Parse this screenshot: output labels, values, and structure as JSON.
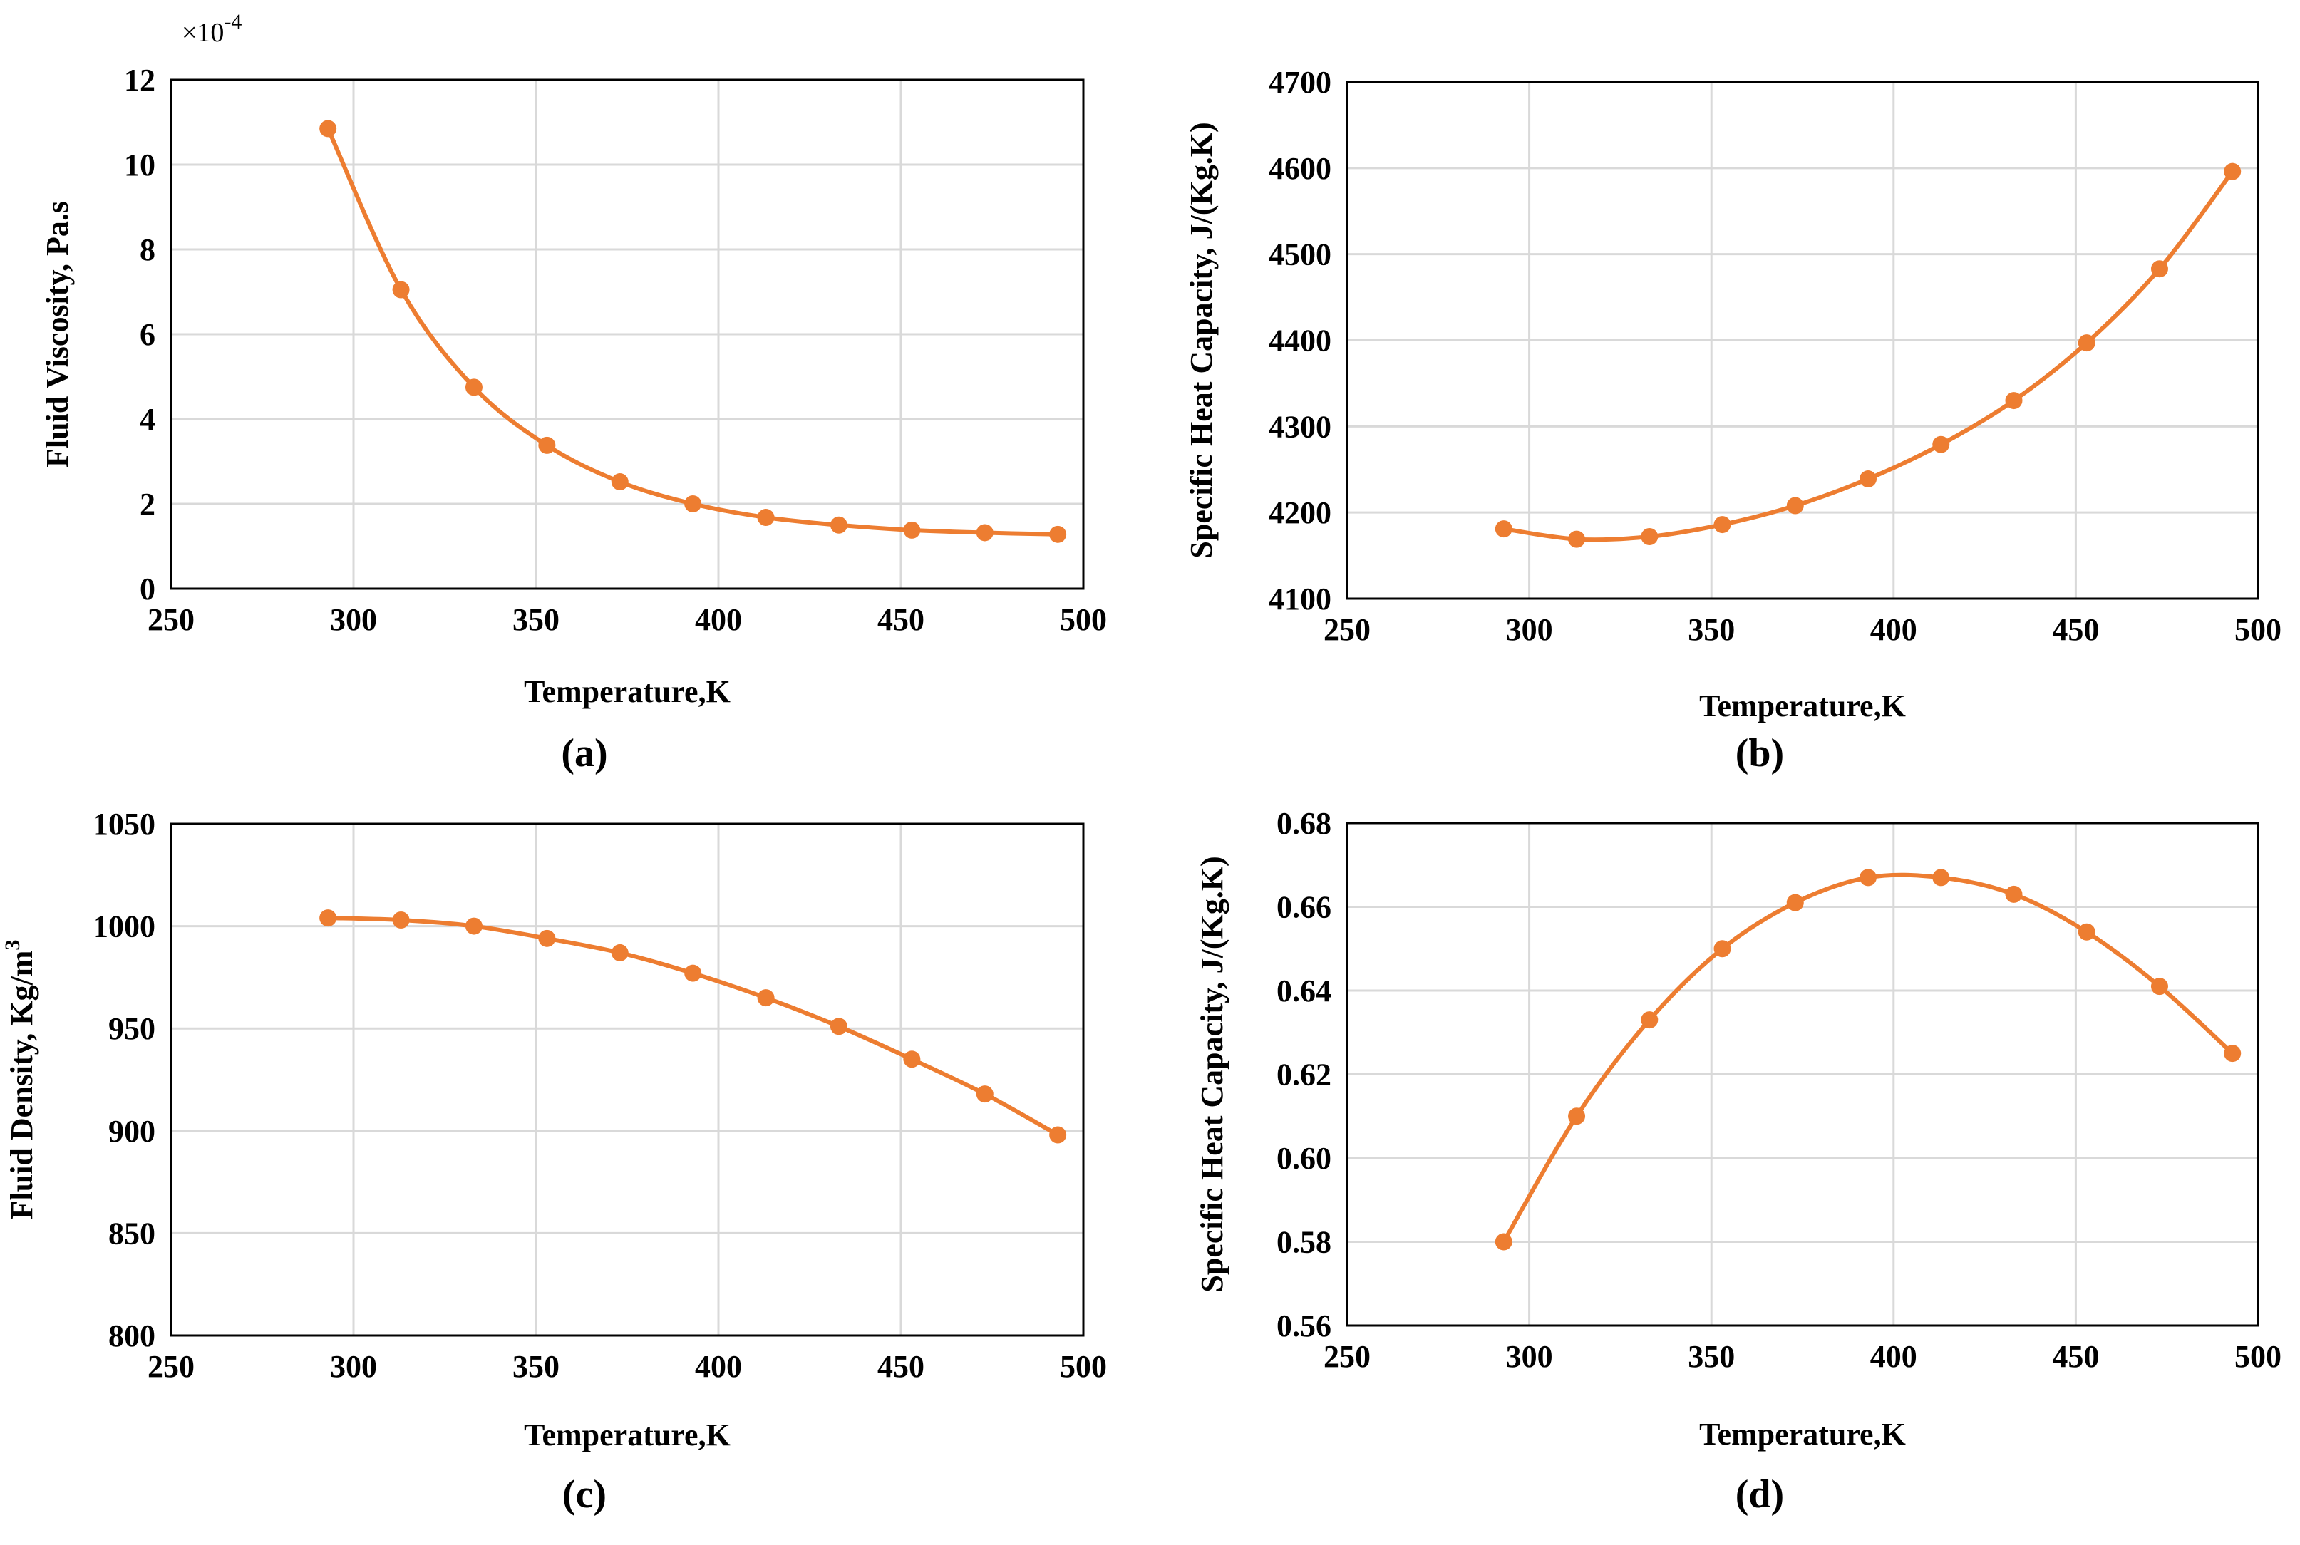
{
  "colors": {
    "series": "#ED7D31",
    "grid": "#d9d9d9",
    "axis": "#000000"
  },
  "chart_data": [
    {
      "id": "a",
      "type": "line",
      "panel_label": "(a)",
      "xlabel": "Temperature,K",
      "ylabel": "Fluid Viscosity, Pa.s",
      "y_multiplier": "×10-4",
      "xlim": [
        250,
        500
      ],
      "ylim": [
        0,
        12
      ],
      "xticks": [
        250,
        300,
        350,
        400,
        450,
        500
      ],
      "yticks": [
        0,
        2,
        4,
        6,
        8,
        10,
        12
      ],
      "ytick_labels": [
        "0",
        "2",
        "4",
        "6",
        "8",
        "10",
        "12"
      ],
      "grid": true,
      "series": [
        {
          "name": "Fluid Viscosity",
          "x": [
            293,
            313,
            333,
            353,
            373,
            393,
            413,
            433,
            453,
            473,
            493
          ],
          "y": [
            10.85,
            7.05,
            4.75,
            3.38,
            2.52,
            2.0,
            1.68,
            1.5,
            1.38,
            1.32,
            1.28
          ]
        }
      ]
    },
    {
      "id": "b",
      "type": "line",
      "panel_label": "(b)",
      "xlabel": "Temperature,K",
      "ylabel": "Specific Heat Capacity, J/(Kg.K)",
      "xlim": [
        250,
        500
      ],
      "ylim": [
        4100,
        4700
      ],
      "xticks": [
        250,
        300,
        350,
        400,
        450,
        500
      ],
      "yticks": [
        4100,
        4200,
        4300,
        4400,
        4500,
        4600,
        4700
      ],
      "ytick_labels": [
        "4100",
        "4200",
        "4300",
        "4400",
        "4500",
        "4600",
        "4700"
      ],
      "grid": true,
      "series": [
        {
          "name": "Specific Heat Capacity",
          "x": [
            293,
            313,
            333,
            353,
            373,
            393,
            413,
            433,
            453,
            473,
            493
          ],
          "y": [
            4181,
            4169,
            4172,
            4186,
            4208,
            4239,
            4279,
            4330,
            4397,
            4483,
            4596
          ]
        }
      ]
    },
    {
      "id": "c",
      "type": "line",
      "panel_label": "(c)",
      "xlabel": "Temperature,K",
      "ylabel": "Fluid Density, Kg/m",
      "ylabel_superscript": "3",
      "xlim": [
        250,
        500
      ],
      "ylim": [
        800,
        1050
      ],
      "xticks": [
        250,
        300,
        350,
        400,
        450,
        500
      ],
      "yticks": [
        800,
        850,
        900,
        950,
        1000,
        1050
      ],
      "ytick_labels": [
        "800",
        "850",
        "900",
        "950",
        "1000",
        "1050"
      ],
      "grid": true,
      "series": [
        {
          "name": "Fluid Density",
          "x": [
            293,
            313,
            333,
            353,
            373,
            393,
            413,
            433,
            453,
            473,
            493
          ],
          "y": [
            1004,
            1003,
            1000,
            994,
            987,
            977,
            965,
            951,
            935,
            918,
            898
          ]
        }
      ]
    },
    {
      "id": "d",
      "type": "line",
      "panel_label": "(d)",
      "xlabel": "Temperature,K",
      "ylabel": "Specific Heat Capacity, J/(Kg.K)",
      "xlim": [
        250,
        500
      ],
      "ylim": [
        0.56,
        0.68
      ],
      "xticks": [
        250,
        300,
        350,
        400,
        450,
        500
      ],
      "yticks": [
        0.56,
        0.58,
        0.6,
        0.62,
        0.64,
        0.66,
        0.68
      ],
      "ytick_labels": [
        "0.56",
        "0.58",
        "0.60",
        "0.62",
        "0.64",
        "0.66",
        "0.68"
      ],
      "grid": true,
      "series": [
        {
          "name": "Specific Heat Capacity",
          "x": [
            293,
            313,
            333,
            353,
            373,
            393,
            413,
            433,
            453,
            473,
            493
          ],
          "y": [
            0.58,
            0.61,
            0.633,
            0.65,
            0.661,
            0.667,
            0.667,
            0.663,
            0.654,
            0.641,
            0.625
          ]
        }
      ]
    }
  ]
}
